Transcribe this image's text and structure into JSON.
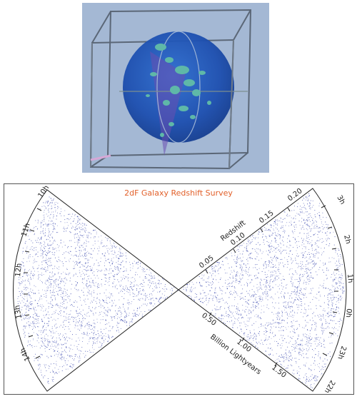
{
  "title": "2dF Galaxy Redshift Survey",
  "left_wedge": {
    "ra_labels": [
      "10h",
      "11h",
      "12h",
      "13h",
      "14h"
    ]
  },
  "right_wedge": {
    "ra_labels": [
      "3h",
      "2h",
      "1h",
      "0h",
      "23h",
      "22h"
    ],
    "redshift_axis": {
      "label": "Redshift",
      "ticks": [
        "0.05",
        "0.10",
        "0.15",
        "0.20"
      ]
    },
    "distance_axis": {
      "label": "Billion Lightyears",
      "ticks": [
        "0.50",
        "1.00",
        "1.50"
      ]
    }
  },
  "colors": {
    "galaxy_dots": "#2b3aa8",
    "title": "#e2612b",
    "photo_background": "#9cb2d0",
    "sphere": "#1f56b8"
  }
}
